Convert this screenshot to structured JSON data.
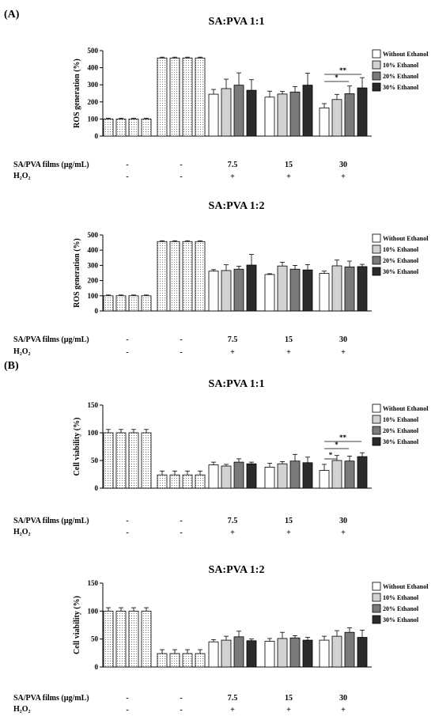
{
  "panels": [
    "(A)",
    "(B)"
  ],
  "legend": [
    "Without Ethanol",
    "10% Ethanol",
    "20% Ethanol",
    "30% Ethanol"
  ],
  "colors": {
    "bar": [
      "#ffffff",
      "#d2d2d2",
      "#7a7a7a",
      "#2b2b2b"
    ],
    "pattern_fill": "#ffffff"
  },
  "rows": {
    "films": "SA/PVA films (µg/mL)",
    "h2o2": "H₂O₂",
    "films_values": [
      "-",
      "-",
      "7.5",
      "15",
      "30"
    ],
    "h2o2_values": [
      "-",
      "-",
      "+",
      "+",
      "+"
    ]
  },
  "chart_data": [
    {
      "type": "bar",
      "title": "SA:PVA 1:1",
      "ylabel": "ROS generation (%)",
      "ylim": [
        0,
        500
      ],
      "yticks": [
        "0",
        "100",
        "200",
        "300",
        "400",
        "500"
      ],
      "control": {
        "value": 100,
        "err": 5
      },
      "h2o2_only": {
        "value": 457,
        "err": 5
      },
      "series": [
        {
          "name": "Without Ethanol",
          "values": [
            245,
            228,
            165
          ],
          "err": [
            28,
            35,
            25
          ]
        },
        {
          "name": "10% Ethanol",
          "values": [
            278,
            246,
            214
          ],
          "err": [
            55,
            15,
            30
          ]
        },
        {
          "name": "20% Ethanol",
          "values": [
            298,
            258,
            248
          ],
          "err": [
            72,
            32,
            45
          ]
        },
        {
          "name": "30% Ethanol",
          "values": [
            268,
            298,
            282
          ],
          "err": [
            62,
            70,
            60
          ]
        }
      ],
      "significance": [
        "**",
        "*"
      ]
    },
    {
      "type": "bar",
      "title": "SA:PVA 1:2",
      "ylabel": "ROS generation (%)",
      "ylim": [
        0,
        500
      ],
      "yticks": [
        "0",
        "100",
        "200",
        "300",
        "400",
        "500"
      ],
      "control": {
        "value": 100,
        "err": 5
      },
      "h2o2_only": {
        "value": 457,
        "err": 5
      },
      "series": [
        {
          "name": "Without Ethanol",
          "values": [
            262,
            240,
            247
          ],
          "err": [
            10,
            5,
            15
          ]
        },
        {
          "name": "10% Ethanol",
          "values": [
            266,
            296,
            297
          ],
          "err": [
            38,
            25,
            38
          ]
        },
        {
          "name": "20% Ethanol",
          "values": [
            275,
            275,
            290
          ],
          "err": [
            20,
            25,
            38
          ]
        },
        {
          "name": "30% Ethanol",
          "values": [
            302,
            270,
            292
          ],
          "err": [
            70,
            35,
            15
          ]
        }
      ],
      "significance": []
    },
    {
      "type": "bar",
      "title": "SA:PVA 1:1",
      "ylabel": "Cell viability (%)",
      "ylim": [
        0,
        150
      ],
      "yticks": [
        "0",
        "50",
        "100",
        "150"
      ],
      "control": {
        "value": 100,
        "err": 6
      },
      "h2o2_only": {
        "value": 24,
        "err": 7
      },
      "series": [
        {
          "name": "Without Ethanol",
          "values": [
            42,
            38,
            32
          ],
          "err": [
            5,
            7,
            11
          ]
        },
        {
          "name": "10% Ethanol",
          "values": [
            40,
            44,
            50
          ],
          "err": [
            3,
            4,
            9
          ]
        },
        {
          "name": "20% Ethanol",
          "values": [
            47,
            49,
            49
          ],
          "err": [
            6,
            12,
            9
          ]
        },
        {
          "name": "30% Ethanol",
          "values": [
            44,
            46,
            57
          ],
          "err": [
            3,
            10,
            7
          ]
        }
      ],
      "significance": [
        "**",
        "*",
        "*"
      ]
    },
    {
      "type": "bar",
      "title": "SA:PVA 1:2",
      "ylabel": "Cell viability (%)",
      "ylim": [
        0,
        150
      ],
      "yticks": [
        "0",
        "50",
        "100",
        "150"
      ],
      "control": {
        "value": 100,
        "err": 6
      },
      "h2o2_only": {
        "value": 24,
        "err": 7
      },
      "series": [
        {
          "name": "Without Ethanol",
          "values": [
            45,
            46,
            48
          ],
          "err": [
            4,
            5,
            7
          ]
        },
        {
          "name": "10% Ethanol",
          "values": [
            48,
            51,
            55
          ],
          "err": [
            7,
            11,
            10
          ]
        },
        {
          "name": "20% Ethanol",
          "values": [
            54,
            52,
            62
          ],
          "err": [
            10,
            4,
            8
          ]
        },
        {
          "name": "30% Ethanol",
          "values": [
            47,
            48,
            53
          ],
          "err": [
            3,
            5,
            13
          ]
        }
      ],
      "significance": []
    }
  ]
}
